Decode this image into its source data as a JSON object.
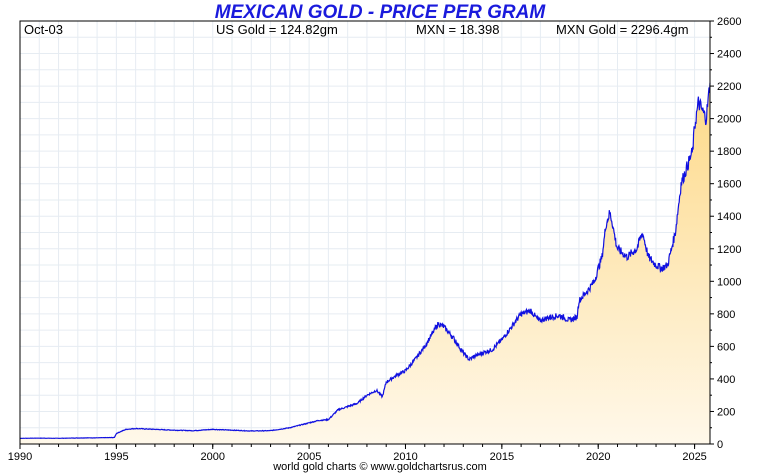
{
  "title": "MEXICAN GOLD - PRICE PER GRAM",
  "header": {
    "date": "Oct-03",
    "us_gold": "US Gold = 124.82gm",
    "mxn": "MXN = 18.398",
    "mxn_gold": "MXN Gold = 2296.4gm"
  },
  "footer": "world gold charts © www.goldchartsrus.com",
  "colors": {
    "line": "#1010e0",
    "fill_top": "#fdd988",
    "fill_bottom": "#fff8ea",
    "grid": "#e6ecf2",
    "title": "#1a1adc"
  },
  "chart_data": {
    "type": "area",
    "title": "MEXICAN GOLD - PRICE PER GRAM",
    "xlabel": "",
    "ylabel": "",
    "xlim": [
      1990,
      2025.8
    ],
    "ylim": [
      0,
      2600
    ],
    "x_ticks": [
      "1990",
      "1995",
      "2000",
      "2005",
      "2010",
      "2015",
      "2020",
      "2025"
    ],
    "y_ticks": [
      "0",
      "200",
      "400",
      "600",
      "800",
      "1000",
      "1200",
      "1400",
      "1600",
      "1800",
      "2000",
      "2200",
      "2400",
      "2600"
    ],
    "y_axis_position": "right",
    "grid": true,
    "series": [
      {
        "x": [
          1990.0,
          1991.0,
          1992.0,
          1993.0,
          1994.0,
          1994.9,
          1995.0,
          1995.5,
          1996.0,
          1997.0,
          1998.0,
          1999.0,
          2000.0,
          2001.0,
          2002.0,
          2003.0,
          2004.0,
          2005.0,
          2005.5,
          2006.0,
          2006.5,
          2007.0,
          2007.5,
          2008.0,
          2008.5,
          2008.8,
          2009.0,
          2009.5,
          2010.0,
          2010.5,
          2011.0,
          2011.5,
          2011.7,
          2012.0,
          2012.5,
          2013.0,
          2013.3,
          2013.6,
          2014.0,
          2014.5,
          2015.0,
          2015.5,
          2016.0,
          2016.5,
          2016.9,
          2017.0,
          2017.5,
          2018.0,
          2018.5,
          2018.9,
          2019.0,
          2019.5,
          2019.8,
          2020.0,
          2020.2,
          2020.4,
          2020.6,
          2020.7,
          2020.9,
          2021.0,
          2021.5,
          2022.0,
          2022.3,
          2022.6,
          2023.0,
          2023.3,
          2023.6,
          2023.8,
          2024.0,
          2024.3,
          2024.6,
          2024.9,
          2025.0,
          2025.2,
          2025.4,
          2025.6,
          2025.8
        ],
        "y": [
          35,
          36,
          35,
          37,
          38,
          40,
          65,
          90,
          95,
          90,
          85,
          82,
          90,
          85,
          80,
          82,
          100,
          130,
          145,
          150,
          210,
          230,
          250,
          300,
          330,
          290,
          380,
          420,
          450,
          520,
          600,
          700,
          740,
          720,
          650,
          560,
          520,
          540,
          560,
          580,
          640,
          720,
          800,
          820,
          760,
          760,
          780,
          790,
          760,
          780,
          880,
          950,
          1000,
          1080,
          1150,
          1350,
          1420,
          1380,
          1250,
          1200,
          1150,
          1200,
          1300,
          1150,
          1100,
          1080,
          1100,
          1200,
          1300,
          1600,
          1700,
          1800,
          1950,
          2100,
          2050,
          2000,
          2220
        ]
      }
    ]
  }
}
